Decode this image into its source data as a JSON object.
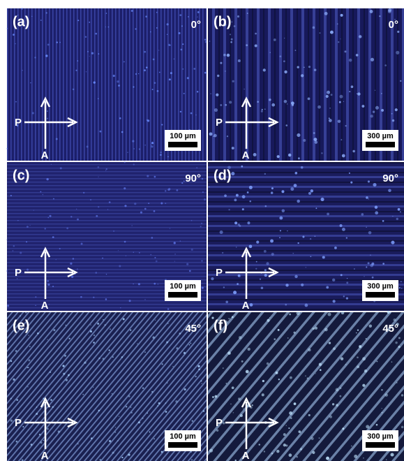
{
  "panels": [
    {
      "label": "(a)",
      "angle": "0°",
      "scale_bar": "100 µm",
      "polarizer": "P",
      "analyzer": "A"
    },
    {
      "label": "(b)",
      "angle": "0°",
      "scale_bar": "300 µm",
      "polarizer": "P",
      "analyzer": "A"
    },
    {
      "label": "(c)",
      "angle": "90°",
      "scale_bar": "100 µm",
      "polarizer": "P",
      "analyzer": "A"
    },
    {
      "label": "(d)",
      "angle": "90°",
      "scale_bar": "300 µm",
      "polarizer": "P",
      "analyzer": "A"
    },
    {
      "label": "(e)",
      "angle": "45°",
      "scale_bar": "100 µm",
      "polarizer": "P",
      "analyzer": "A"
    },
    {
      "label": "(f)",
      "angle": "45°",
      "scale_bar": "300 µm",
      "polarizer": "P",
      "analyzer": "A"
    }
  ]
}
